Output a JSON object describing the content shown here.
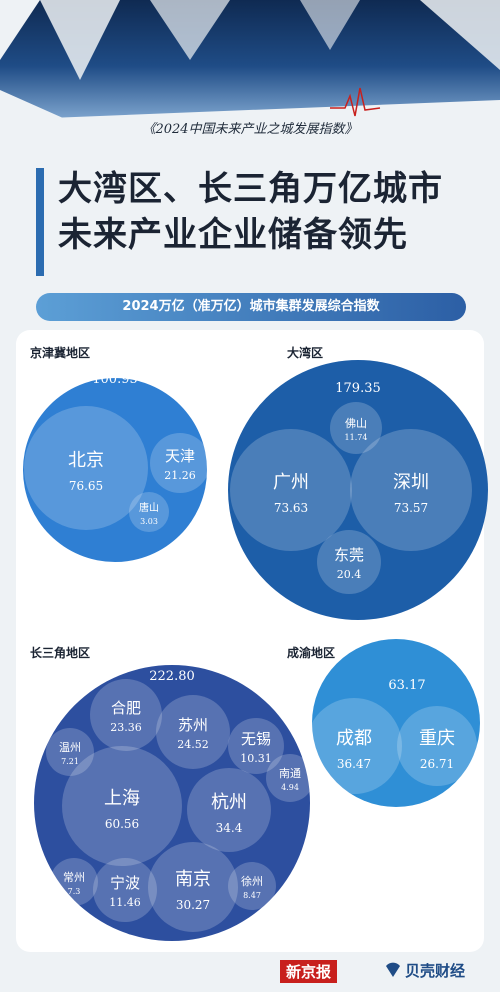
{
  "header": {
    "subtitle": "《2024中国未来产业之城发展指数》",
    "title_line1": "大湾区、长三角万亿城市",
    "title_line2": "未来产业企业储备领先",
    "section_label": "2024万亿（准万亿）城市集群发展综合指数"
  },
  "chart_data": {
    "type": "bubble",
    "clusters": [
      {
        "name": "京津冀地区",
        "total": "100.95",
        "cities": [
          {
            "name": "北京",
            "value": "76.65"
          },
          {
            "name": "天津",
            "value": "21.26"
          },
          {
            "name": "唐山",
            "value": "3.03"
          }
        ]
      },
      {
        "name": "大湾区",
        "total": "179.35",
        "cities": [
          {
            "name": "佛山",
            "value": "11.74"
          },
          {
            "name": "广州",
            "value": "73.63"
          },
          {
            "name": "深圳",
            "value": "73.57"
          },
          {
            "name": "东莞",
            "value": "20.4"
          }
        ]
      },
      {
        "name": "长三角地区",
        "total": "222.80",
        "cities": [
          {
            "name": "合肥",
            "value": "23.36"
          },
          {
            "name": "苏州",
            "value": "24.52"
          },
          {
            "name": "无锡",
            "value": "10.31"
          },
          {
            "name": "温州",
            "value": "7.21"
          },
          {
            "name": "南通",
            "value": "4.94"
          },
          {
            "name": "上海",
            "value": "60.56"
          },
          {
            "name": "杭州",
            "value": "34.4"
          },
          {
            "name": "常州",
            "value": "7.3"
          },
          {
            "name": "宁波",
            "value": "11.46"
          },
          {
            "name": "南京",
            "value": "30.27"
          },
          {
            "name": "徐州",
            "value": "8.47"
          }
        ]
      },
      {
        "name": "成渝地区",
        "total": "63.17",
        "cities": [
          {
            "name": "成都",
            "value": "36.47"
          },
          {
            "name": "重庆",
            "value": "26.71"
          }
        ]
      }
    ]
  },
  "footer": {
    "logo_xjb": "新京报",
    "logo_bk": "贝壳财经"
  },
  "colors": {
    "jjj": "#2f7fd3",
    "gba": "#1d5ea8",
    "yrd": "#2d4f9f",
    "cy": "#2f8fd6"
  }
}
